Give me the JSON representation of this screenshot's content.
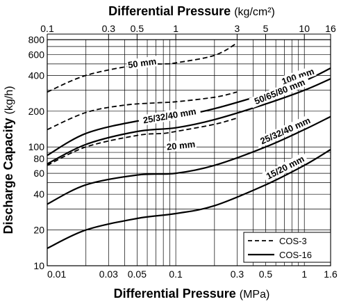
{
  "chart_data": {
    "type": "line",
    "x_scale": "log",
    "y_scale": "log",
    "xlim": [
      0.01,
      1.6
    ],
    "ylim": [
      10,
      800
    ],
    "grid": true,
    "xlabel": {
      "bold": "Differential Pressure",
      "unit": "(MPa)"
    },
    "x2label": {
      "bold": "Differential Pressure",
      "unit": "(kg/cm²)"
    },
    "ylabel": {
      "bold": "Discharge Capacity",
      "unit": "(kg/h)"
    },
    "x_ticks": [
      {
        "v": 0.01,
        "label": "0.01"
      },
      {
        "v": 0.03,
        "label": "0.03"
      },
      {
        "v": 0.05,
        "label": "0.05"
      },
      {
        "v": 0.1,
        "label": "0.1"
      },
      {
        "v": 0.3,
        "label": "0.3"
      },
      {
        "v": 0.5,
        "label": "0.5"
      },
      {
        "v": 1,
        "label": "1"
      },
      {
        "v": 1.6,
        "label": "1.6"
      }
    ],
    "x2_ticks": [
      {
        "v": 0.1,
        "label": "0.1"
      },
      {
        "v": 0.3,
        "label": "0.3"
      },
      {
        "v": 0.5,
        "label": "0.5"
      },
      {
        "v": 1,
        "label": "1"
      },
      {
        "v": 3,
        "label": "3"
      },
      {
        "v": 5,
        "label": "5"
      },
      {
        "v": 10,
        "label": "10"
      },
      {
        "v": 16,
        "label": "16"
      }
    ],
    "y_ticks": [
      {
        "v": 10,
        "label": "10"
      },
      {
        "v": 20,
        "label": "20"
      },
      {
        "v": 40,
        "label": "40"
      },
      {
        "v": 60,
        "label": "60"
      },
      {
        "v": 80,
        "label": "80"
      },
      {
        "v": 100,
        "label": "100"
      },
      {
        "v": 200,
        "label": "200"
      },
      {
        "v": 400,
        "label": "400"
      },
      {
        "v": 600,
        "label": "600"
      },
      {
        "v": 800,
        "label": "800"
      }
    ],
    "legend": {
      "placement": "bottom-right",
      "entries": [
        {
          "name": "COS-3",
          "style": "dashed"
        },
        {
          "name": "COS-16",
          "style": "solid"
        }
      ]
    },
    "series": [
      {
        "name": "50 mm",
        "model": "COS-3",
        "style": "dashed",
        "points": [
          [
            0.01,
            290
          ],
          [
            0.02,
            400
          ],
          [
            0.05,
            490
          ],
          [
            0.08,
            500
          ],
          [
            0.1,
            510
          ],
          [
            0.2,
            590
          ],
          [
            0.3,
            750
          ]
        ]
      },
      {
        "name": "25/32/40 mm",
        "model": "COS-3",
        "style": "dashed",
        "points": [
          [
            0.01,
            140
          ],
          [
            0.02,
            195
          ],
          [
            0.04,
            225
          ],
          [
            0.07,
            235
          ],
          [
            0.1,
            240
          ],
          [
            0.2,
            262
          ],
          [
            0.3,
            290
          ]
        ]
      },
      {
        "name": "20 mm",
        "model": "COS-3",
        "style": "dashed",
        "points": [
          [
            0.01,
            70
          ],
          [
            0.02,
            100
          ],
          [
            0.05,
            125
          ],
          [
            0.08,
            130
          ],
          [
            0.1,
            135
          ],
          [
            0.2,
            155
          ],
          [
            0.3,
            175
          ]
        ]
      },
      {
        "name": "100 mm",
        "model": "COS-16",
        "style": "solid",
        "points": [
          [
            0.01,
            85
          ],
          [
            0.02,
            130
          ],
          [
            0.05,
            165
          ],
          [
            0.1,
            180
          ],
          [
            0.2,
            210
          ],
          [
            0.5,
            280
          ],
          [
            1,
            360
          ],
          [
            1.6,
            460
          ]
        ]
      },
      {
        "name": "50/65/80 mm",
        "model": "COS-16",
        "style": "solid",
        "points": [
          [
            0.01,
            72
          ],
          [
            0.02,
            105
          ],
          [
            0.05,
            135
          ],
          [
            0.1,
            145
          ],
          [
            0.2,
            170
          ],
          [
            0.5,
            230
          ],
          [
            1,
            300
          ],
          [
            1.6,
            375
          ]
        ]
      },
      {
        "name": "25/32/40 mm",
        "model": "COS-16",
        "style": "solid",
        "points": [
          [
            0.01,
            33
          ],
          [
            0.02,
            48
          ],
          [
            0.05,
            58
          ],
          [
            0.1,
            60
          ],
          [
            0.2,
            70
          ],
          [
            0.5,
            100
          ],
          [
            1,
            140
          ],
          [
            1.6,
            180
          ]
        ]
      },
      {
        "name": "15/20 mm",
        "model": "COS-16",
        "style": "solid",
        "points": [
          [
            0.01,
            14
          ],
          [
            0.02,
            20
          ],
          [
            0.05,
            25
          ],
          [
            0.1,
            27.5
          ],
          [
            0.2,
            32
          ],
          [
            0.5,
            48
          ],
          [
            1,
            70
          ],
          [
            1.6,
            95
          ]
        ]
      }
    ]
  }
}
